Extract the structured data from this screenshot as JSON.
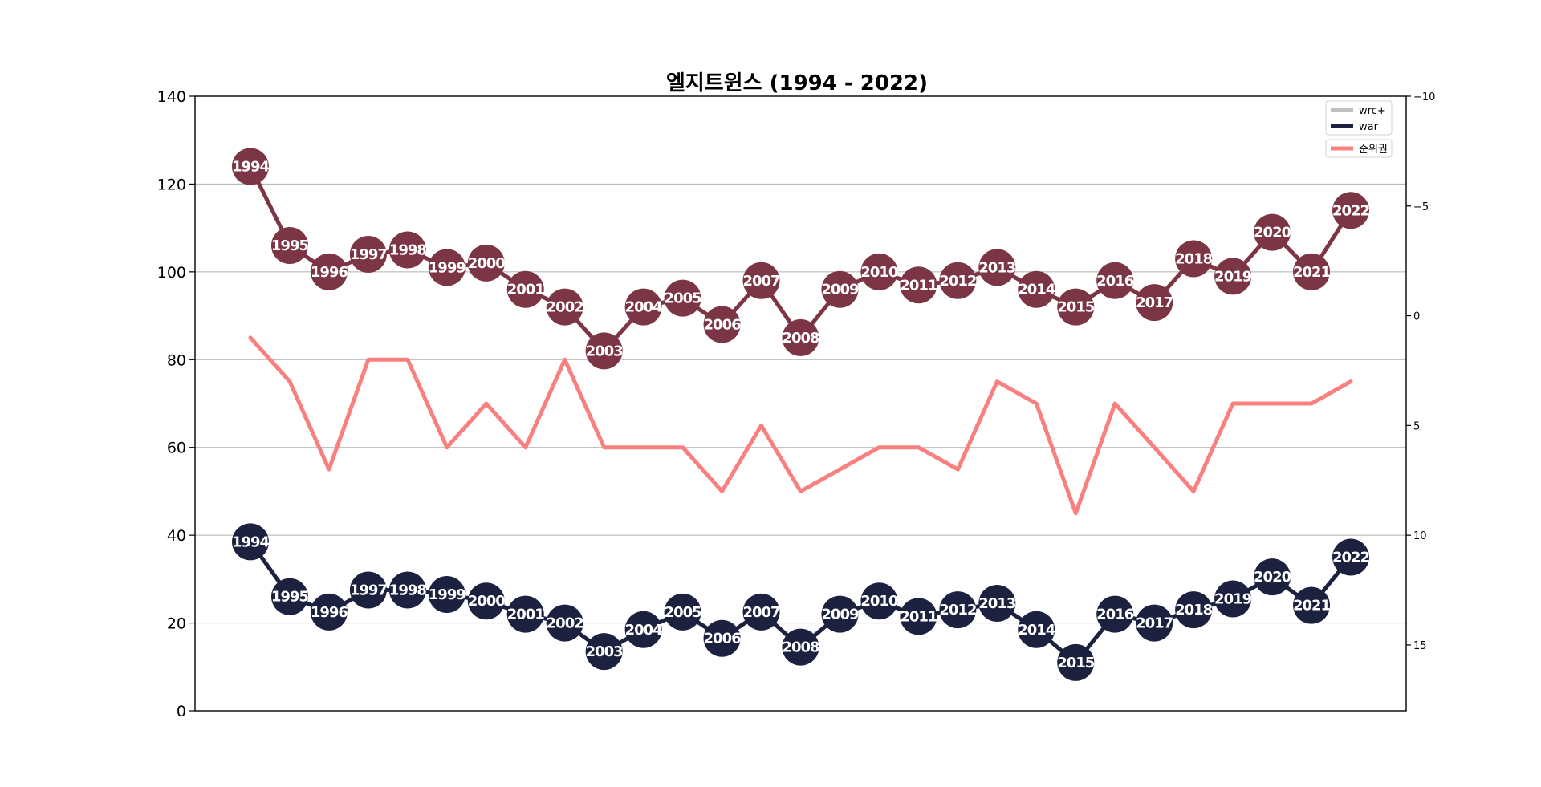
{
  "chart_data": {
    "type": "line",
    "title": "엘지트윈스 (1994 - 2022)",
    "years": [
      "1994",
      "1995",
      "1996",
      "1997",
      "1998",
      "1999",
      "2000",
      "2001",
      "2002",
      "2003",
      "2004",
      "2005",
      "2006",
      "2007",
      "2008",
      "2009",
      "2010",
      "2011",
      "2012",
      "2013",
      "2014",
      "2015",
      "2016",
      "2017",
      "2018",
      "2019",
      "2020",
      "2021",
      "2022"
    ],
    "y_left": {
      "ylim": [
        0,
        140
      ],
      "ticks": [
        0,
        20,
        40,
        60,
        80,
        100,
        120,
        140
      ]
    },
    "y_right": {
      "ylim": [
        18,
        -10
      ],
      "inverted": true,
      "ticks": [
        -10,
        -5,
        0,
        5,
        10,
        15
      ]
    },
    "grid": true,
    "legend_position": "top-right",
    "series": [
      {
        "name": "wrc+",
        "axis": "left",
        "color": "#7b3545",
        "legend_color": "#c0c0c0",
        "values": [
          124,
          106,
          100,
          104,
          105,
          101,
          102,
          96,
          92,
          82,
          92,
          94,
          88,
          98,
          85,
          96,
          100,
          97,
          98,
          101,
          96,
          92,
          98,
          93,
          103,
          99,
          109,
          100,
          114
        ]
      },
      {
        "name": "war",
        "axis": "left",
        "color": "#1c2140",
        "legend_color": "#1c2140",
        "values": [
          38.5,
          26,
          22.5,
          27.5,
          27.5,
          26.5,
          25,
          22,
          20,
          13.5,
          18.5,
          22.5,
          16.5,
          22.5,
          14.5,
          22,
          25,
          21.5,
          23,
          24.5,
          18.5,
          11,
          22,
          20,
          23,
          25.5,
          30.5,
          24,
          35
        ]
      },
      {
        "name": "순위권",
        "axis": "right",
        "color": "#fa8080",
        "legend_color": "#fa8080",
        "values": [
          1,
          3,
          7,
          2,
          2,
          6,
          4,
          6,
          2,
          6,
          6,
          6,
          8,
          5,
          8,
          7,
          6,
          6,
          7,
          3,
          4,
          9,
          4,
          6,
          8,
          4,
          4,
          4,
          3
        ]
      }
    ]
  }
}
